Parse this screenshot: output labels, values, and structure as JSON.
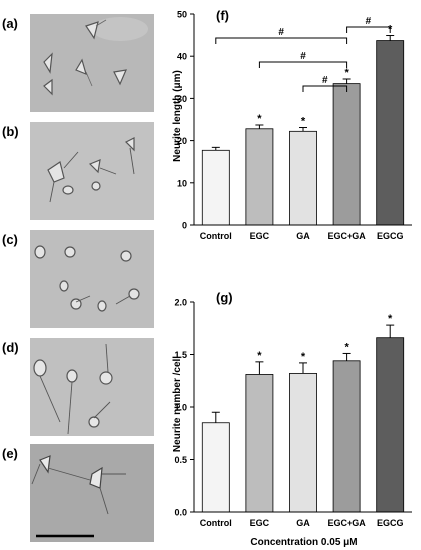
{
  "panels": {
    "micro_labels": [
      "(a)",
      "(b)",
      "(c)",
      "(d)",
      "(e)"
    ]
  },
  "chart_data": [
    {
      "type": "bar",
      "panel_label": "(f)",
      "categories": [
        "Control",
        "EGC",
        "GA",
        "EGC+GA",
        "EGCG"
      ],
      "values": [
        17.7,
        22.8,
        22.2,
        33.5,
        43.7
      ],
      "errors": [
        0.7,
        0.9,
        0.9,
        1.1,
        1.2
      ],
      "star": [
        "",
        "*",
        "*",
        "*",
        "*"
      ],
      "colors": [
        "#f4f4f4",
        "#bdbdbd",
        "#e2e2e2",
        "#9c9c9c",
        "#5d5d5d"
      ],
      "ylabel": "Neurite length (μm)",
      "xlabel": "",
      "ylim": [
        0,
        50
      ],
      "yticks": [
        0,
        10,
        20,
        30,
        40,
        50
      ],
      "brackets": [
        {
          "from": 0,
          "to": 3,
          "label": "#"
        },
        {
          "from": 1,
          "to": 3,
          "label": "#"
        },
        {
          "from": 2,
          "to": 3,
          "label": "#"
        },
        {
          "from": 3,
          "to": 4,
          "label": "#"
        }
      ]
    },
    {
      "type": "bar",
      "panel_label": "(g)",
      "categories": [
        "Control",
        "EGC",
        "GA",
        "EGC+GA",
        "EGCG"
      ],
      "values": [
        0.85,
        1.31,
        1.32,
        1.44,
        1.66
      ],
      "errors": [
        0.1,
        0.12,
        0.1,
        0.07,
        0.12
      ],
      "star": [
        "",
        "*",
        "*",
        "*",
        "*"
      ],
      "colors": [
        "#f4f4f4",
        "#bdbdbd",
        "#e2e2e2",
        "#9c9c9c",
        "#5d5d5d"
      ],
      "ylabel": "Neurite number /cell",
      "xlabel": "Concentration 0.05 μM",
      "ylim": [
        0,
        2.0
      ],
      "yticks": [
        "0.0",
        "0.5",
        "1.0",
        "1.5",
        "2.0"
      ]
    }
  ]
}
